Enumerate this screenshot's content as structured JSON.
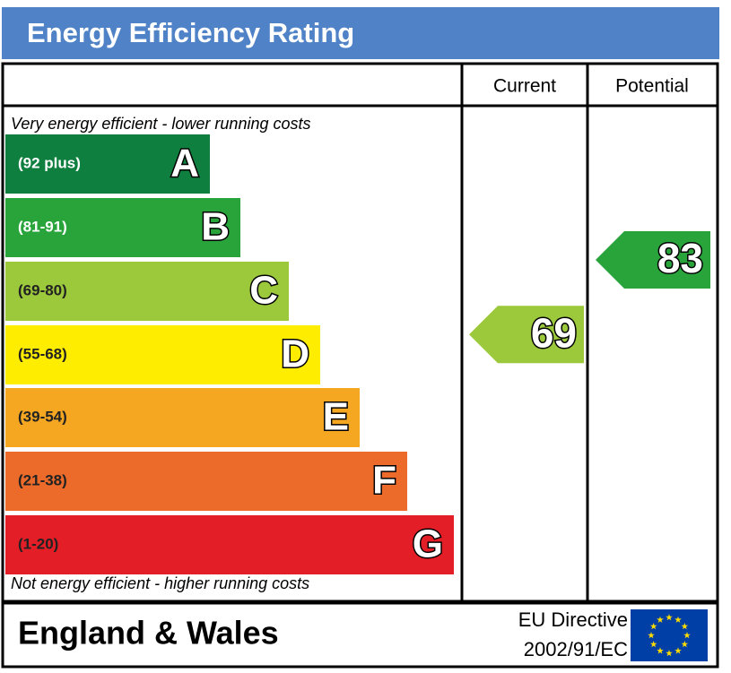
{
  "title": "Energy Efficiency Rating",
  "columns": [
    "Current",
    "Potential"
  ],
  "top_note": "Very energy efficient - lower running costs",
  "bottom_note": "Not energy efficient - higher running costs",
  "bands": [
    {
      "range": "(92 plus)",
      "letter": "A",
      "color": "#0f7f3f"
    },
    {
      "range": "(81-91)",
      "letter": "B",
      "color": "#28a43b"
    },
    {
      "range": "(69-80)",
      "letter": "C",
      "color": "#9cc83c"
    },
    {
      "range": "(55-68)",
      "letter": "D",
      "color": "#ffed00"
    },
    {
      "range": "(39-54)",
      "letter": "E",
      "color": "#f6a722"
    },
    {
      "range": "(21-38)",
      "letter": "F",
      "color": "#ec6b2a"
    },
    {
      "range": "(1-20)",
      "letter": "G",
      "color": "#e31e26"
    }
  ],
  "current": 69,
  "potential": 83,
  "footer": {
    "region": "England & Wales",
    "directive": "EU Directive",
    "code": "2002/91/EC"
  }
}
